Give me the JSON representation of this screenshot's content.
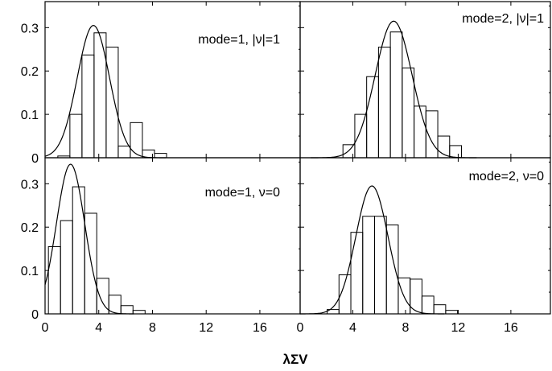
{
  "chart_data": {
    "type": "bar",
    "xlabel": "λΣV",
    "x_ticks": [
      "0",
      "4",
      "8",
      "12",
      "16"
    ],
    "y_ticks": [
      "0",
      "0.1",
      "0.2",
      "0.3"
    ],
    "xlim": [
      0,
      19
    ],
    "ylim": [
      0,
      0.36
    ],
    "bin_width": 0.9,
    "panels": [
      {
        "annotation": "mode=1, |ν|=1",
        "bars": [
          {
            "x": 0.95,
            "y": 0.004
          },
          {
            "x": 1.85,
            "y": 0.1
          },
          {
            "x": 2.75,
            "y": 0.237
          },
          {
            "x": 3.65,
            "y": 0.288
          },
          {
            "x": 4.55,
            "y": 0.255
          },
          {
            "x": 5.45,
            "y": 0.027
          },
          {
            "x": 6.35,
            "y": 0.081
          },
          {
            "x": 7.25,
            "y": 0.018
          },
          {
            "x": 8.15,
            "y": 0.01
          }
        ],
        "curve": {
          "amplitude": 0.305,
          "center": 3.6,
          "sigma": 1.2
        }
      },
      {
        "annotation": "mode=2, |ν|=1",
        "bars": [
          {
            "x": 3.25,
            "y": 0.03
          },
          {
            "x": 4.15,
            "y": 0.1
          },
          {
            "x": 5.05,
            "y": 0.187
          },
          {
            "x": 5.95,
            "y": 0.255
          },
          {
            "x": 6.85,
            "y": 0.29
          },
          {
            "x": 7.75,
            "y": 0.207
          },
          {
            "x": 8.65,
            "y": 0.119
          },
          {
            "x": 9.55,
            "y": 0.108
          },
          {
            "x": 10.45,
            "y": 0.05
          },
          {
            "x": 11.35,
            "y": 0.028
          }
        ],
        "curve": {
          "amplitude": 0.315,
          "center": 7.1,
          "sigma": 1.4
        }
      },
      {
        "annotation": "mode=1, ν=0",
        "bars": [
          {
            "x": 0.25,
            "y": 0.155
          },
          {
            "x": 1.15,
            "y": 0.215
          },
          {
            "x": 2.05,
            "y": 0.293
          },
          {
            "x": 2.95,
            "y": 0.232
          },
          {
            "x": 3.85,
            "y": 0.082
          },
          {
            "x": 4.75,
            "y": 0.043
          },
          {
            "x": 5.65,
            "y": 0.019
          },
          {
            "x": 6.55,
            "y": 0.008
          }
        ],
        "curve": {
          "amplitude": 0.345,
          "center": 1.9,
          "sigma": 1.05
        }
      },
      {
        "annotation": "mode=2, ν=0",
        "bars": [
          {
            "x": 2.05,
            "y": 0.01
          },
          {
            "x": 2.95,
            "y": 0.09
          },
          {
            "x": 3.85,
            "y": 0.188
          },
          {
            "x": 4.75,
            "y": 0.225
          },
          {
            "x": 5.65,
            "y": 0.225
          },
          {
            "x": 6.55,
            "y": 0.205
          },
          {
            "x": 7.45,
            "y": 0.083
          },
          {
            "x": 8.35,
            "y": 0.08
          },
          {
            "x": 9.25,
            "y": 0.041
          },
          {
            "x": 10.15,
            "y": 0.021
          },
          {
            "x": 11.05,
            "y": 0.008
          }
        ],
        "curve": {
          "amplitude": 0.295,
          "center": 5.45,
          "sigma": 1.22
        }
      }
    ]
  }
}
